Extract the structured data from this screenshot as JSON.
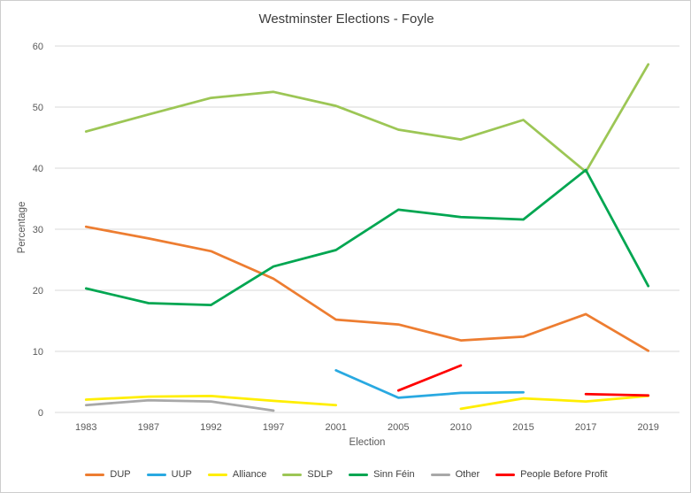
{
  "title": "Westminster Elections - Foyle",
  "chart_data": {
    "type": "line",
    "title": "Westminster Elections - Foyle",
    "xlabel": "Election",
    "ylabel": "Percentage",
    "ylim": [
      0,
      60
    ],
    "ytick_step": 10,
    "grid": "horizontal-only",
    "legend_position": "bottom",
    "categories": [
      "1983",
      "1987",
      "1992",
      "1997",
      "2001",
      "2005",
      "2010",
      "2015",
      "2017",
      "2019"
    ],
    "series": [
      {
        "name": "DUP",
        "color": "#ED7D31",
        "values": [
          30.4,
          28.5,
          26.4,
          21.9,
          15.2,
          14.4,
          11.8,
          12.4,
          16.1,
          10.1
        ]
      },
      {
        "name": "UUP",
        "color": "#29A9E1",
        "values": [
          null,
          null,
          null,
          null,
          6.9,
          2.4,
          3.2,
          3.3,
          null,
          null
        ]
      },
      {
        "name": "Alliance",
        "color": "#FFEE00",
        "values": [
          2.1,
          2.6,
          2.7,
          1.9,
          1.2,
          null,
          0.6,
          2.3,
          1.8,
          2.7
        ]
      },
      {
        "name": "SDLP",
        "color": "#9CC655",
        "values": [
          46.0,
          48.8,
          51.5,
          52.5,
          50.2,
          46.3,
          44.7,
          47.9,
          39.4,
          57.0
        ]
      },
      {
        "name": "Sinn Féin",
        "color": "#00A651",
        "values": [
          20.3,
          17.9,
          17.6,
          23.9,
          26.6,
          33.2,
          32.0,
          31.6,
          39.7,
          20.7
        ]
      },
      {
        "name": "Other",
        "color": "#A8A8A8",
        "values": [
          1.2,
          2.0,
          1.8,
          0.3,
          null,
          null,
          null,
          null,
          null,
          null
        ]
      },
      {
        "name": "People Before Profit",
        "color": "#FF0000",
        "values": [
          null,
          null,
          null,
          null,
          null,
          3.6,
          7.7,
          null,
          3.0,
          2.8
        ]
      }
    ]
  },
  "style": {
    "gridline_color": "#D9D9D9",
    "tick_label_color": "#595959",
    "title_color": "#3B3B3B"
  }
}
